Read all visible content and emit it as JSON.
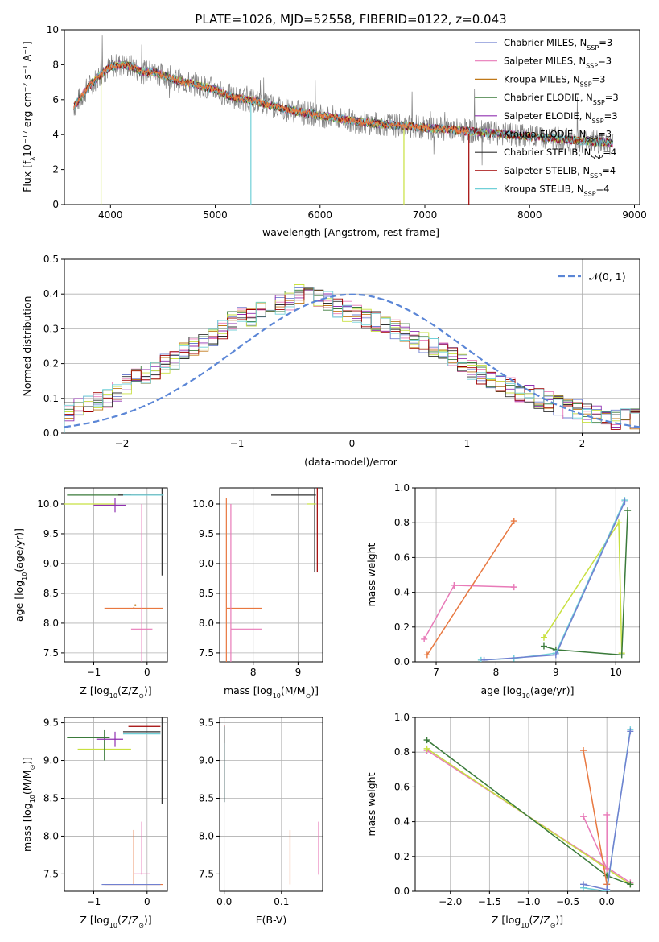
{
  "figure_title": "PLATE=1026, MJD=52558, FIBERID=0122, z=0.043",
  "colors": {
    "chabrier_miles": "#7080d0",
    "salpeter_miles": "#e87ab8",
    "kroupa_miles": "#c07818",
    "chabrier_elodie": "#3a7a3a",
    "salpeter_elodie": "#9030b0",
    "kroupa_elodie": "#c8e040",
    "chabrier_stelib": "#303030",
    "salpeter_stelib": "#a00000",
    "kroupa_stelib": "#70d0d8",
    "normal": "#5b86d6",
    "data": "#808080",
    "orange_model": "#e87840"
  },
  "chart_data": [
    {
      "id": "spectrum",
      "type": "line",
      "title": "PLATE=1026, MJD=52558, FIBERID=0122, z=0.043",
      "xlabel": "wavelength [Angstrom, rest frame]",
      "ylabel_main": "Flux [f",
      "ylabel_sub": "λ",
      "ylabel_rest": "10",
      "ylabel_exp1": "−17",
      "ylabel_mid": " erg cm",
      "ylabel_exp2": "−2",
      "ylabel_mid2": " s",
      "ylabel_exp3": "−1",
      "ylabel_mid3": " A",
      "ylabel_exp4": "−1",
      "ylabel_end": "]",
      "xlim": [
        3560,
        9050
      ],
      "ylim": [
        0,
        10
      ],
      "xticks": [
        4000,
        5000,
        6000,
        7000,
        8000,
        9000
      ],
      "yticks": [
        0,
        2,
        4,
        6,
        8,
        10
      ],
      "continuum": {
        "x": [
          3650,
          3700,
          3800,
          3900,
          4000,
          4100,
          4200,
          4300,
          4400,
          4500,
          4600,
          4700,
          4800,
          4900,
          5000,
          5100,
          5200,
          5300,
          5400,
          5500,
          5600,
          5700,
          5800,
          5900,
          6000,
          6200,
          6400,
          6600,
          6800,
          7000,
          7200,
          7400,
          7600,
          7800,
          8000,
          8200,
          8400,
          8600,
          8800
        ],
        "y": [
          5.6,
          6.0,
          6.8,
          7.4,
          7.9,
          8.0,
          7.9,
          7.6,
          7.6,
          7.4,
          7.2,
          7.0,
          6.9,
          6.7,
          6.6,
          6.3,
          6.1,
          6.0,
          5.9,
          5.7,
          5.6,
          5.4,
          5.3,
          5.2,
          5.1,
          4.9,
          4.7,
          4.6,
          4.5,
          4.4,
          4.3,
          4.2,
          4.1,
          4.0,
          3.9,
          3.8,
          3.7,
          3.6,
          3.5
        ]
      },
      "series": [
        {
          "name": "Chabrier MILES, N",
          "sub": "SSP",
          "suffix": "=3"
        },
        {
          "name": "Salpeter MILES, N",
          "sub": "SSP",
          "suffix": "=3"
        },
        {
          "name": "Kroupa MILES, N",
          "sub": "SSP",
          "suffix": "=3"
        },
        {
          "name": "Chabrier ELODIE, N",
          "sub": "SSP",
          "suffix": "=3"
        },
        {
          "name": "Salpeter ELODIE, N",
          "sub": "SSP",
          "suffix": "=3"
        },
        {
          "name": "Kroupa ELODIE, N",
          "sub": "SSP",
          "suffix": "=3"
        },
        {
          "name": "Chabrier STELIB, N",
          "sub": "SSP",
          "suffix": "=4"
        },
        {
          "name": "Salpeter STELIB, N",
          "sub": "SSP",
          "suffix": "=4"
        },
        {
          "name": "Kroupa STELIB, N",
          "sub": "SSP",
          "suffix": "=4"
        }
      ],
      "legend_placement": "top-right"
    },
    {
      "id": "residuals",
      "type": "histogram",
      "xlabel": "(data-model)/error",
      "ylabel": "Normed distribution",
      "xlim": [
        -2.5,
        2.5
      ],
      "ylim": [
        0,
        0.5
      ],
      "xticks": [
        -2,
        -1,
        0,
        1,
        2
      ],
      "yticks": [
        0.0,
        0.1,
        0.2,
        0.3,
        0.4,
        0.5
      ],
      "grid": true,
      "legend_label": "𝒩(0, 1)",
      "legend_placement": "top-right",
      "hist_values": [
        0.06,
        0.07,
        0.08,
        0.09,
        0.1,
        0.12,
        0.14,
        0.16,
        0.17,
        0.18,
        0.2,
        0.21,
        0.23,
        0.25,
        0.26,
        0.28,
        0.3,
        0.32,
        0.34,
        0.33,
        0.35,
        0.36,
        0.37,
        0.38,
        0.4,
        0.42,
        0.39,
        0.38,
        0.36,
        0.35,
        0.34,
        0.33,
        0.32,
        0.31,
        0.3,
        0.29,
        0.27,
        0.26,
        0.25,
        0.24,
        0.22,
        0.2,
        0.18,
        0.17,
        0.15,
        0.14,
        0.13,
        0.12,
        0.11,
        0.1,
        0.09,
        0.08,
        0.07,
        0.07,
        0.06,
        0.05,
        0.05,
        0.04,
        0.04,
        0.04
      ]
    },
    {
      "id": "age_vs_Z",
      "type": "errorbar",
      "xlabel": "Z [log",
      "xlabel_sub": "10",
      "xlabel_rest": "(Z/Z",
      "xlabel_sub2": "⊙",
      "xlabel_end": ")]",
      "ylabel": "age  [log",
      "ylabel_sub": "10",
      "ylabel_rest": "(age/yr)]",
      "xlim": [
        -1.55,
        0.38
      ],
      "ylim": [
        7.35,
        10.27
      ],
      "xticks": [
        -1,
        0
      ],
      "yticks": [
        7.5,
        8.0,
        8.5,
        9.0,
        9.5,
        10.0
      ],
      "points": [
        {
          "x": -0.9,
          "y": 10.15,
          "xerr": 0.6,
          "yerr": 0.0,
          "c": "chabrier_elodie"
        },
        {
          "x": -1.1,
          "y": 10.0,
          "xerr": 0.5,
          "yerr": 0.0,
          "c": "kroupa_elodie"
        },
        {
          "x": -0.7,
          "y": 9.98,
          "xerr": 0.3,
          "yerr": 0.0,
          "c": "salpeter_elodie"
        },
        {
          "x": -0.6,
          "y": 9.98,
          "xerr": 0.0,
          "yerr": 0.12,
          "c": "salpeter_elodie"
        },
        {
          "x": -0.12,
          "y": 10.15,
          "xerr": 0.42,
          "yerr": 0.0,
          "c": "chabrier_stelib"
        },
        {
          "x": 0.28,
          "y": 10.15,
          "xerr": 0.0,
          "yerr": 1.35,
          "c": "chabrier_stelib"
        },
        {
          "x": -0.07,
          "y": 10.15,
          "xerr": 0.38,
          "yerr": 0.0,
          "c": "kroupa_stelib"
        },
        {
          "x": -0.25,
          "y": 8.25,
          "xerr": 0.55,
          "yerr": 0.0,
          "c": "orange_model"
        },
        {
          "x": -0.25,
          "y": 8.25,
          "xerr": 0.0,
          "yerr": 0.0,
          "c": "orange_model"
        },
        {
          "x": -0.1,
          "y": 7.9,
          "xerr": 0.2,
          "yerr": 0.0,
          "c": "salpeter_miles"
        },
        {
          "x": -0.1,
          "y": 8.3,
          "xerr": 0.0,
          "yerr": 1.7,
          "c": "salpeter_miles"
        },
        {
          "x": -0.22,
          "y": 8.3,
          "xerr": 0.0,
          "yerr": 0.0,
          "c": "kroupa_miles"
        }
      ]
    },
    {
      "id": "age_vs_mass",
      "type": "errorbar",
      "xlabel": "mass [log",
      "xlabel_sub": "10",
      "xlabel_rest": "(M/M",
      "xlabel_sub2": "⊙",
      "xlabel_end": ")]",
      "xlim": [
        7.25,
        9.55
      ],
      "ylim": [
        7.35,
        10.27
      ],
      "xticks": [
        8,
        9
      ],
      "yticks": [
        7.5,
        8.0,
        8.5,
        9.0,
        9.5,
        10.0
      ],
      "points": [
        {
          "x": 8.9,
          "y": 10.15,
          "xerr": 0.5,
          "yerr": 0.0,
          "c": "chabrier_stelib"
        },
        {
          "x": 9.37,
          "y": 10.15,
          "xerr": 0.0,
          "yerr": 1.3,
          "c": "chabrier_stelib"
        },
        {
          "x": 9.43,
          "y": 10.15,
          "xerr": 0.0,
          "yerr": 1.3,
          "c": "salpeter_stelib"
        },
        {
          "x": 9.3,
          "y": 10.0,
          "xerr": 0.1,
          "yerr": 0.0,
          "c": "kroupa_elodie"
        },
        {
          "x": 7.8,
          "y": 8.25,
          "xerr": 0.4,
          "yerr": 0.0,
          "c": "orange_model"
        },
        {
          "x": 7.4,
          "y": 8.25,
          "xerr": 0.0,
          "yerr": 1.85,
          "c": "orange_model"
        },
        {
          "x": 7.85,
          "y": 7.9,
          "xerr": 0.35,
          "yerr": 0.0,
          "c": "salpeter_miles"
        },
        {
          "x": 7.5,
          "y": 8.6,
          "xerr": 0.0,
          "yerr": 1.4,
          "c": "salpeter_miles"
        }
      ]
    },
    {
      "id": "weight_vs_age",
      "type": "line",
      "xlabel": "age  [log",
      "xlabel_sub": "10",
      "xlabel_rest": "(age/yr)]",
      "ylabel": "mass weight",
      "xlim": [
        6.65,
        10.4
      ],
      "ylim": [
        0,
        1.0
      ],
      "xticks": [
        7,
        8,
        9,
        10
      ],
      "yticks": [
        0.0,
        0.2,
        0.4,
        0.6,
        0.8,
        1.0
      ],
      "grid": true,
      "series": [
        {
          "c": "salpeter_miles",
          "x": [
            6.8,
            7.3,
            8.3
          ],
          "y": [
            0.13,
            0.44,
            0.43
          ]
        },
        {
          "c": "orange_model",
          "x": [
            6.85,
            8.3
          ],
          "y": [
            0.04,
            0.81
          ]
        },
        {
          "c": "kroupa_elodie",
          "x": [
            8.8,
            10.05,
            10.1
          ],
          "y": [
            0.14,
            0.8,
            0.05
          ]
        },
        {
          "c": "chabrier_elodie",
          "x": [
            8.8,
            9.0,
            10.1,
            10.2
          ],
          "y": [
            0.09,
            0.07,
            0.04,
            0.87
          ]
        },
        {
          "c": "kroupa_stelib",
          "x": [
            7.75,
            8.3,
            9.0,
            10.15
          ],
          "y": [
            0.01,
            0.02,
            0.05,
            0.93
          ]
        },
        {
          "c": "chabrier_miles",
          "x": [
            7.8,
            9.0,
            10.15
          ],
          "y": [
            0.01,
            0.04,
            0.92
          ]
        }
      ]
    },
    {
      "id": "mass_vs_Z",
      "type": "errorbar",
      "xlabel": "Z [log",
      "xlabel_sub": "10",
      "xlabel_rest": "(Z/Z",
      "xlabel_sub2": "⊙",
      "xlabel_end": ")]",
      "ylabel": "mass [log",
      "ylabel_sub": "10",
      "ylabel_rest": "(M/M",
      "ylabel_sub2": "⊙",
      "ylabel_end": ")]",
      "xlim": [
        -1.55,
        0.38
      ],
      "ylim": [
        7.27,
        9.57
      ],
      "xticks": [
        -1,
        0
      ],
      "yticks": [
        7.5,
        8.0,
        8.5,
        9.0,
        9.5
      ],
      "points": [
        {
          "x": -1.1,
          "y": 9.3,
          "xerr": 0.4,
          "yerr": 0.0,
          "c": "chabrier_elodie"
        },
        {
          "x": -0.8,
          "y": 9.15,
          "xerr": 0.5,
          "yerr": 0.0,
          "c": "kroupa_elodie"
        },
        {
          "x": -0.8,
          "y": 9.2,
          "xerr": 0.0,
          "yerr": 0.2,
          "c": "chabrier_elodie"
        },
        {
          "x": -0.7,
          "y": 9.28,
          "xerr": 0.25,
          "yerr": 0.0,
          "c": "salpeter_elodie"
        },
        {
          "x": -0.6,
          "y": 9.28,
          "xerr": 0.0,
          "yerr": 0.1,
          "c": "salpeter_elodie"
        },
        {
          "x": -0.05,
          "y": 9.45,
          "xerr": 0.3,
          "yerr": 0.0,
          "c": "salpeter_stelib"
        },
        {
          "x": -0.1,
          "y": 9.38,
          "xerr": 0.35,
          "yerr": 0.0,
          "c": "chabrier_stelib"
        },
        {
          "x": -0.1,
          "y": 9.35,
          "xerr": 0.35,
          "yerr": 0.0,
          "c": "kroupa_stelib"
        },
        {
          "x": 0.28,
          "y": 9.38,
          "xerr": 0.0,
          "yerr": 0.95,
          "c": "chabrier_stelib"
        },
        {
          "x": -0.25,
          "y": 7.36,
          "xerr": 0.55,
          "yerr": 0.0,
          "c": "orange_model"
        },
        {
          "x": -0.25,
          "y": 7.72,
          "xerr": 0.0,
          "yerr": 0.36,
          "c": "orange_model"
        },
        {
          "x": -0.1,
          "y": 7.5,
          "xerr": 0.15,
          "yerr": 0.0,
          "c": "salpeter_miles"
        },
        {
          "x": -0.1,
          "y": 7.84,
          "xerr": 0.0,
          "yerr": 0.35,
          "c": "salpeter_miles"
        },
        {
          "x": -0.3,
          "y": 7.36,
          "xerr": 0.55,
          "yerr": 0.0,
          "c": "chabrier_miles"
        }
      ]
    },
    {
      "id": "mass_vs_ebv",
      "type": "errorbar",
      "xlabel": "E(B-V)",
      "xlim": [
        -0.008,
        0.172
      ],
      "ylim": [
        7.27,
        9.57
      ],
      "xticks": [
        0.0,
        0.1
      ],
      "yticks": [
        7.5,
        8.0,
        8.5,
        9.0,
        9.5
      ],
      "points": [
        {
          "x": 0.0,
          "y": 9.35,
          "xerr": 0.0,
          "yerr": 0.12,
          "c": "salpeter_stelib"
        },
        {
          "x": 0.0,
          "y": 8.95,
          "xerr": 0.0,
          "yerr": 0.5,
          "c": "kroupa_stelib"
        },
        {
          "x": 0.0,
          "y": 8.95,
          "xerr": 0.0,
          "yerr": 0.5,
          "c": "chabrier_stelib"
        },
        {
          "x": 0.115,
          "y": 7.72,
          "xerr": 0.0,
          "yerr": 0.36,
          "c": "orange_model"
        },
        {
          "x": 0.165,
          "y": 7.84,
          "xerr": 0.0,
          "yerr": 0.35,
          "c": "salpeter_miles"
        }
      ]
    },
    {
      "id": "weight_vs_Z",
      "type": "line",
      "xlabel": "Z [log",
      "xlabel_sub": "10",
      "xlabel_rest": "(Z/Z",
      "xlabel_sub2": "⊙",
      "xlabel_end": ")]",
      "ylabel": "mass weight",
      "xlim": [
        -2.45,
        0.42
      ],
      "ylim": [
        0,
        1.0
      ],
      "xticks": [
        -2.0,
        -1.5,
        -1.0,
        -0.5,
        0.0
      ],
      "yticks": [
        0.0,
        0.2,
        0.4,
        0.6,
        0.8,
        1.0
      ],
      "grid": true,
      "series": [
        {
          "c": "salpeter_miles",
          "x": [
            -2.3,
            0.3
          ],
          "y": [
            0.81,
            0.05
          ]
        },
        {
          "c": "kroupa_elodie",
          "x": [
            -2.3,
            0.3
          ],
          "y": [
            0.82,
            0.04
          ]
        },
        {
          "c": "chabrier_elodie",
          "x": [
            -2.3,
            0.0,
            0.3
          ],
          "y": [
            0.87,
            0.09,
            0.04
          ]
        },
        {
          "c": "salpeter_miles",
          "x": [
            -0.3,
            0.0,
            0.0
          ],
          "y": [
            0.43,
            0.13,
            0.44
          ]
        },
        {
          "c": "orange_model",
          "x": [
            -0.3,
            0.0
          ],
          "y": [
            0.81,
            0.04
          ]
        },
        {
          "c": "kroupa_stelib",
          "x": [
            -0.3,
            0.0,
            0.3
          ],
          "y": [
            0.02,
            0.0,
            0.93
          ]
        },
        {
          "c": "chabrier_miles",
          "x": [
            -0.3,
            0.0,
            0.3
          ],
          "y": [
            0.04,
            0.01,
            0.92
          ]
        }
      ]
    }
  ]
}
